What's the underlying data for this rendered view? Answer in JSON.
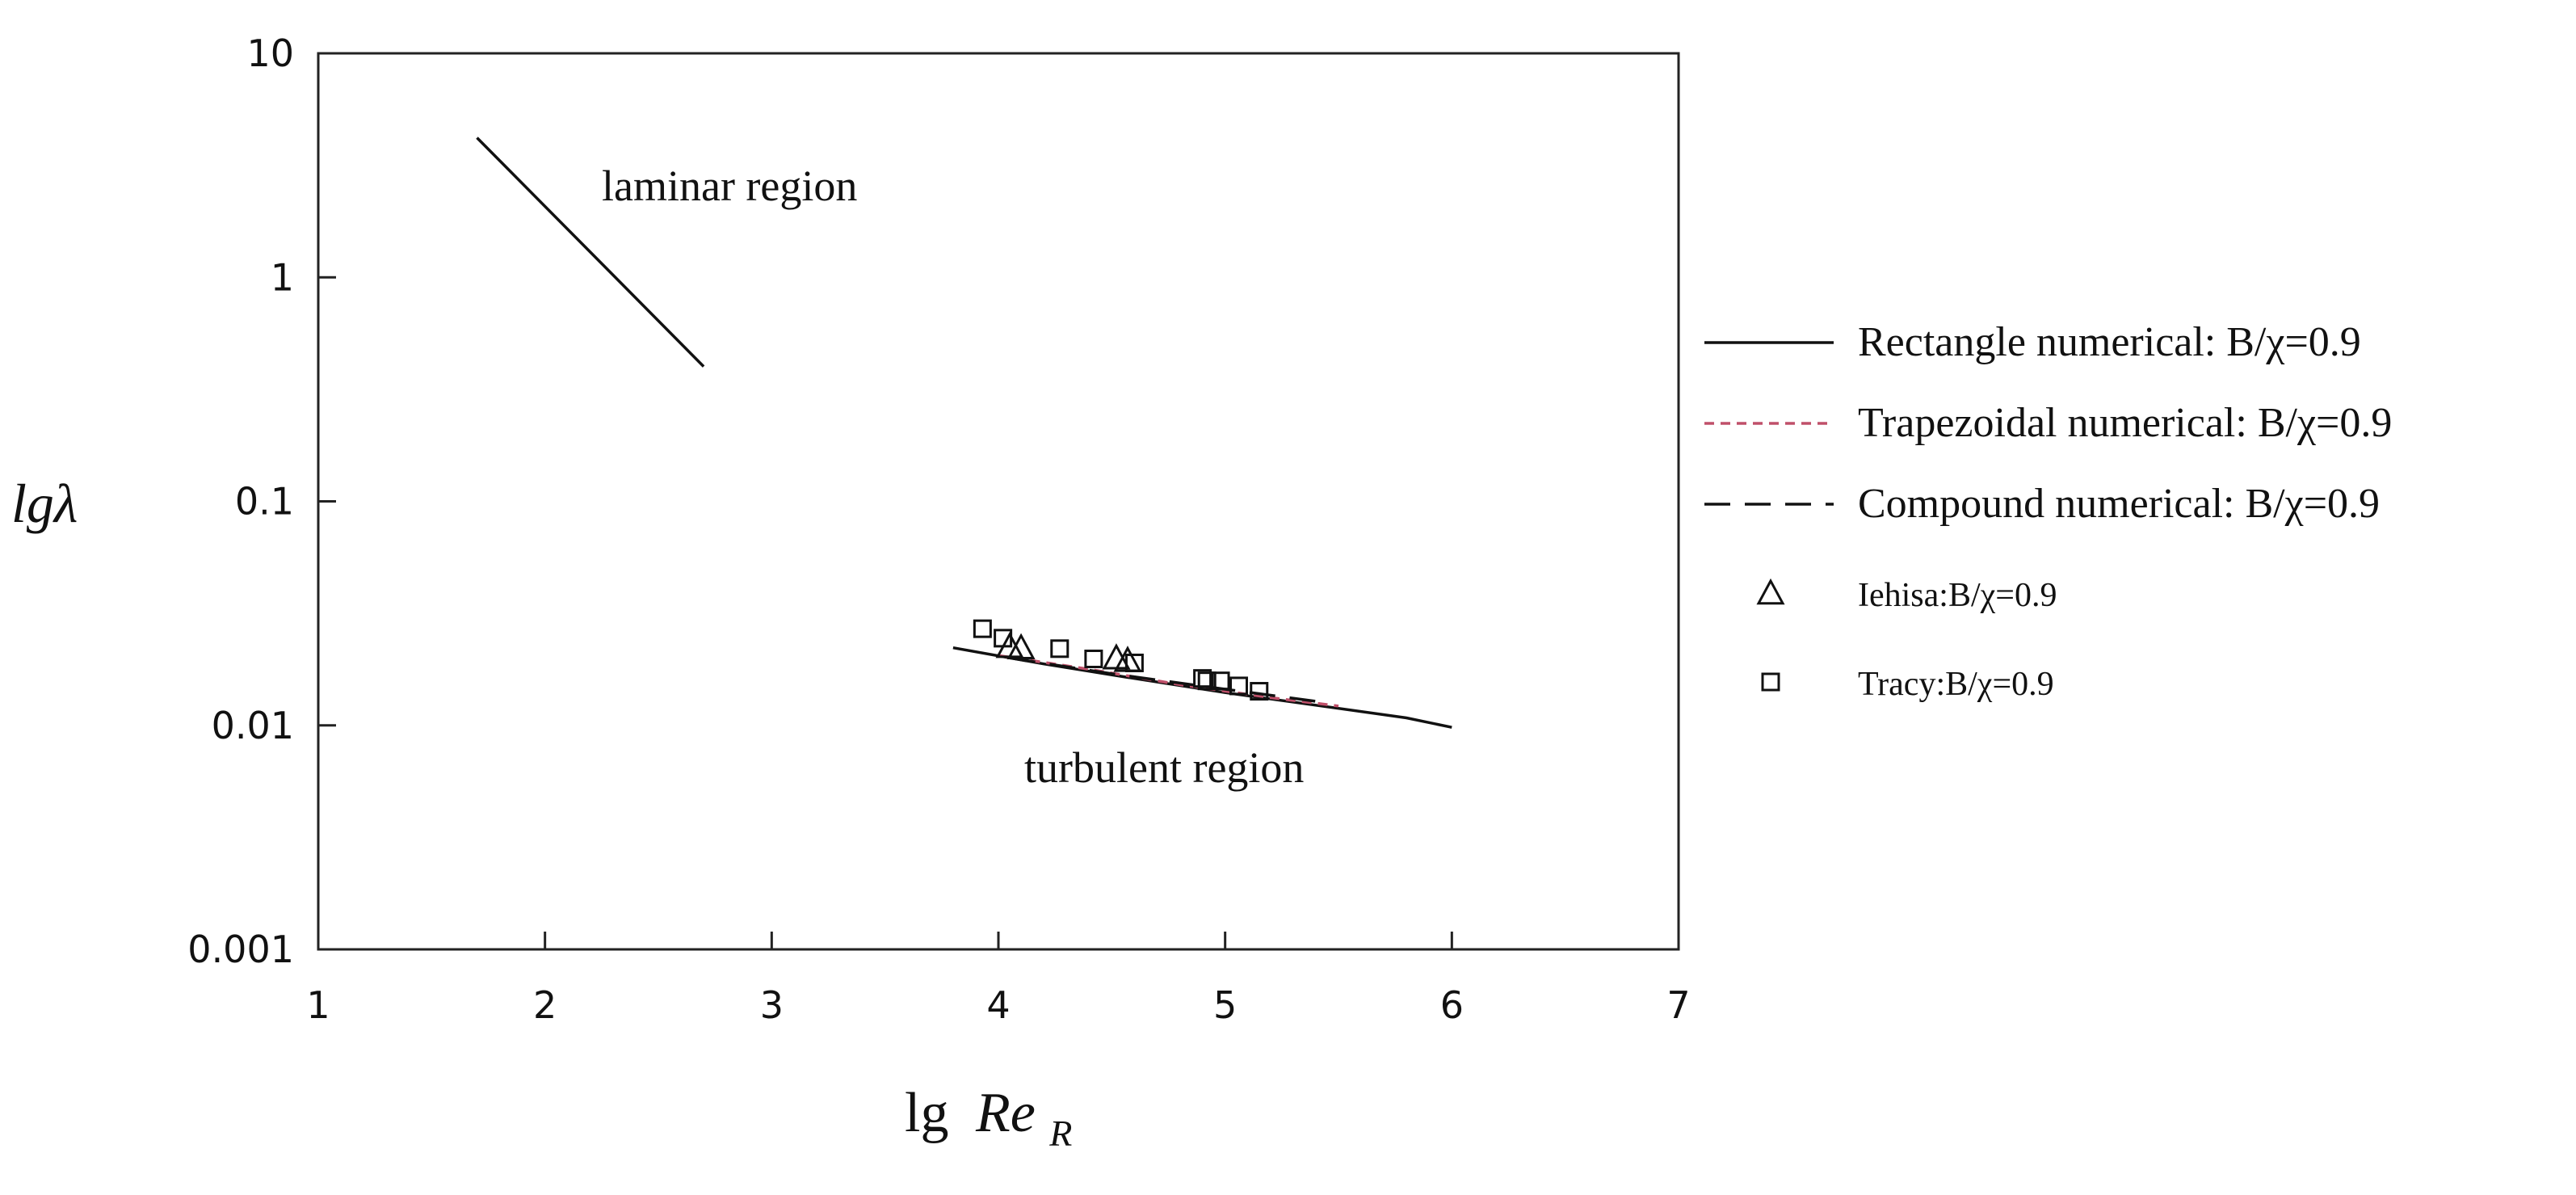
{
  "chart_data": {
    "type": "line",
    "x_axis": {
      "title": "lg",
      "title_symbol": "Re",
      "title_subscript": "R",
      "range": [
        1,
        7
      ],
      "ticks": [
        "1",
        "2",
        "3",
        "4",
        "5",
        "6",
        "7"
      ],
      "tick_values": [
        1,
        2,
        3,
        4,
        5,
        6,
        7
      ]
    },
    "y_axis": {
      "title": "lgλ",
      "scale": "log",
      "range": [
        0.001,
        10
      ],
      "ticks": [
        "0.001",
        "0.01",
        "0.1",
        "1",
        "10"
      ],
      "tick_values": [
        0.001,
        0.01,
        0.1,
        1,
        10
      ]
    },
    "grid": false,
    "legend_position": "right",
    "annotations": [
      {
        "text": "laminar region",
        "x": 2.2,
        "y": 2.6
      },
      {
        "text": "turbulent region",
        "x": 4.1,
        "y": 0.0082
      }
    ],
    "series": [
      {
        "name": "Rectangle numerical: B/χ=0.9",
        "kind": "line",
        "dash": "solid",
        "color": "#111111",
        "segments": [
          [
            [
              1.7,
              4.2
            ],
            [
              2.7,
              0.4
            ]
          ],
          [
            [
              3.8,
              0.0222
            ],
            [
              4.2,
              0.0188
            ],
            [
              4.6,
              0.0162
            ],
            [
              5.0,
              0.014
            ],
            [
              5.4,
              0.0123
            ],
            [
              5.8,
              0.0108
            ],
            [
              6.0,
              0.0098
            ]
          ]
        ]
      },
      {
        "name": "Trapezoidal numerical: B/χ=0.9",
        "kind": "line",
        "dash": "short-dash",
        "color": "#c0506a",
        "segments": [
          [
            [
              4.0,
              0.0205
            ],
            [
              4.4,
              0.0178
            ],
            [
              4.8,
              0.0152
            ],
            [
              5.2,
              0.0133
            ],
            [
              5.5,
              0.0122
            ]
          ]
        ]
      },
      {
        "name": "Compound numerical: B/χ=0.9",
        "kind": "line",
        "dash": "long-dash",
        "color": "#111111",
        "segments": [
          [
            [
              4.05,
              0.02
            ],
            [
              4.5,
              0.017
            ],
            [
              5.0,
              0.0145
            ],
            [
              5.4,
              0.0128
            ]
          ]
        ]
      },
      {
        "name": "Iehisa:B/χ=0.9",
        "kind": "scatter",
        "marker": "triangle",
        "color": "#111111",
        "points": [
          [
            4.05,
            0.0225
          ],
          [
            4.1,
            0.0222
          ],
          [
            4.52,
            0.02
          ],
          [
            4.57,
            0.0195
          ]
        ]
      },
      {
        "name": "Tracy:B/χ=0.9",
        "kind": "scatter",
        "marker": "square",
        "color": "#111111",
        "points": [
          [
            3.93,
            0.027
          ],
          [
            4.02,
            0.0245
          ],
          [
            4.27,
            0.022
          ],
          [
            4.42,
            0.0198
          ],
          [
            4.6,
            0.019
          ],
          [
            4.9,
            0.0162
          ],
          [
            4.92,
            0.0158
          ],
          [
            4.98,
            0.0158
          ],
          [
            5.06,
            0.015
          ],
          [
            5.15,
            0.0142
          ]
        ]
      }
    ]
  }
}
